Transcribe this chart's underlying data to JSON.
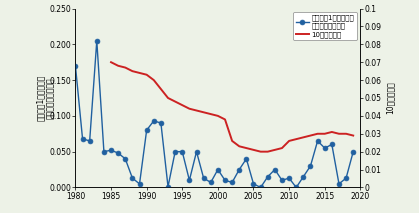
{
  "years": [
    1980,
    1981,
    1982,
    1983,
    1984,
    1985,
    1986,
    1987,
    1988,
    1989,
    1990,
    1991,
    1992,
    1993,
    1994,
    1995,
    1996,
    1997,
    1998,
    1999,
    2000,
    2001,
    2002,
    2003,
    2004,
    2005,
    2006,
    2007,
    2008,
    2009,
    2010,
    2011,
    2012,
    2013,
    2014,
    2015,
    2016,
    2017,
    2018,
    2019
  ],
  "deaths_per_disaster": [
    0.17,
    0.068,
    0.065,
    0.205,
    0.05,
    0.052,
    0.048,
    0.04,
    0.013,
    0.005,
    0.08,
    0.093,
    0.09,
    0.001,
    0.05,
    0.05,
    0.01,
    0.05,
    0.013,
    0.007,
    0.025,
    0.01,
    0.007,
    0.025,
    0.04,
    0.005,
    0.0,
    0.015,
    0.025,
    0.01,
    0.013,
    0.0,
    0.015,
    0.03,
    0.065,
    0.055,
    0.06,
    0.005,
    0.013,
    0.05
  ],
  "ma10_years": [
    1985,
    1986,
    1987,
    1988,
    1989,
    1990,
    1991,
    1992,
    1993,
    1994,
    1995,
    1996,
    1997,
    1998,
    1999,
    2000,
    2001,
    2002,
    2003,
    2004,
    2005,
    2006,
    2007,
    2008,
    2009,
    2010,
    2011,
    2012,
    2013,
    2014,
    2015,
    2016,
    2017,
    2018,
    2019
  ],
  "ma10_values": [
    0.07,
    0.068,
    0.067,
    0.065,
    0.064,
    0.063,
    0.06,
    0.055,
    0.05,
    0.048,
    0.046,
    0.044,
    0.043,
    0.042,
    0.041,
    0.04,
    0.038,
    0.026,
    0.023,
    0.022,
    0.021,
    0.02,
    0.02,
    0.021,
    0.022,
    0.026,
    0.027,
    0.028,
    0.029,
    0.03,
    0.03,
    0.031,
    0.03,
    0.03,
    0.029
  ],
  "bg_color": "#edf2e7",
  "line1_color": "#2060a0",
  "line2_color": "#cc2222",
  "ylim_left": [
    0.0,
    0.25
  ],
  "ylim_right": [
    0.0,
    0.1
  ],
  "xlim": [
    1980,
    2020
  ],
  "ylabel_left": "土砂災害1件あたりの\n死者・行方不明者数",
  "ylabel_right": "10年移動平均",
  "legend_label1": "土砂災害1件あたりの\n死者・行方不明者",
  "legend_label2": "10年移動平均",
  "xticks": [
    1980,
    1985,
    1990,
    1995,
    2000,
    2005,
    2010,
    2015,
    2020
  ],
  "yticks_left": [
    0.0,
    0.05,
    0.1,
    0.15,
    0.2,
    0.25
  ],
  "yticks_right": [
    0,
    0.01,
    0.02,
    0.03,
    0.04,
    0.05,
    0.06,
    0.07,
    0.08,
    0.09,
    0.1
  ],
  "ytick_right_labels": [
    "0",
    "0.01",
    "0.02",
    "0.03",
    "0.04",
    "0.05",
    "0.06",
    "0.07",
    "0.08",
    "0.09",
    "0.1"
  ]
}
